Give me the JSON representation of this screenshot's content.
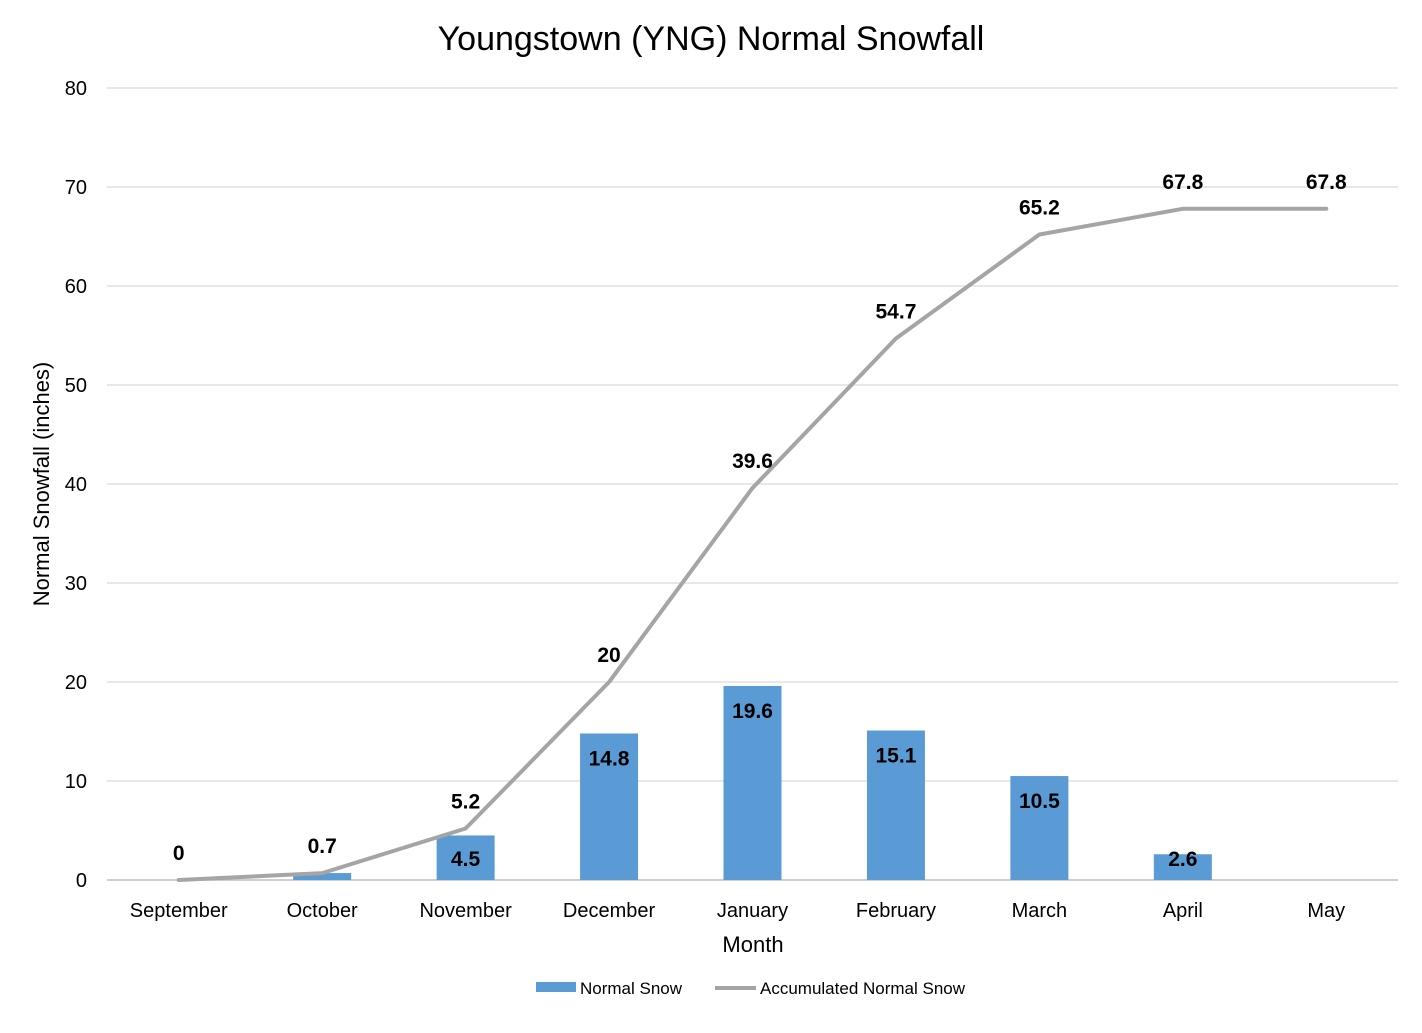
{
  "chart_data": {
    "type": "bar",
    "title": "Youngstown (YNG) Normal Snowfall",
    "xlabel": "Month",
    "ylabel": "Normal Snowfall (inches)",
    "ylim": [
      0,
      80
    ],
    "yticks": [
      0,
      10,
      20,
      30,
      40,
      50,
      60,
      70,
      80
    ],
    "grid": true,
    "legend_position": "bottom",
    "categories": [
      "September",
      "October",
      "November",
      "December",
      "January",
      "February",
      "March",
      "April",
      "May"
    ],
    "series": [
      {
        "name": "Normal Snow",
        "type": "bar",
        "color": "#5B9BD5",
        "values": [
          0,
          0.7,
          4.5,
          14.8,
          19.6,
          15.1,
          10.5,
          2.6,
          0
        ],
        "labels": [
          "",
          "",
          "4.5",
          "14.8",
          "19.6",
          "15.1",
          "10.5",
          "2.6",
          ""
        ]
      },
      {
        "name": "Accumulated Normal Snow",
        "type": "line",
        "color": "#A5A5A5",
        "values": [
          0,
          0.7,
          5.2,
          20,
          39.6,
          54.7,
          65.2,
          67.8,
          67.8
        ],
        "labels": [
          "0",
          "0.7",
          "5.2",
          "20",
          "39.6",
          "54.7",
          "65.2",
          "67.8",
          "67.8"
        ]
      }
    ]
  }
}
